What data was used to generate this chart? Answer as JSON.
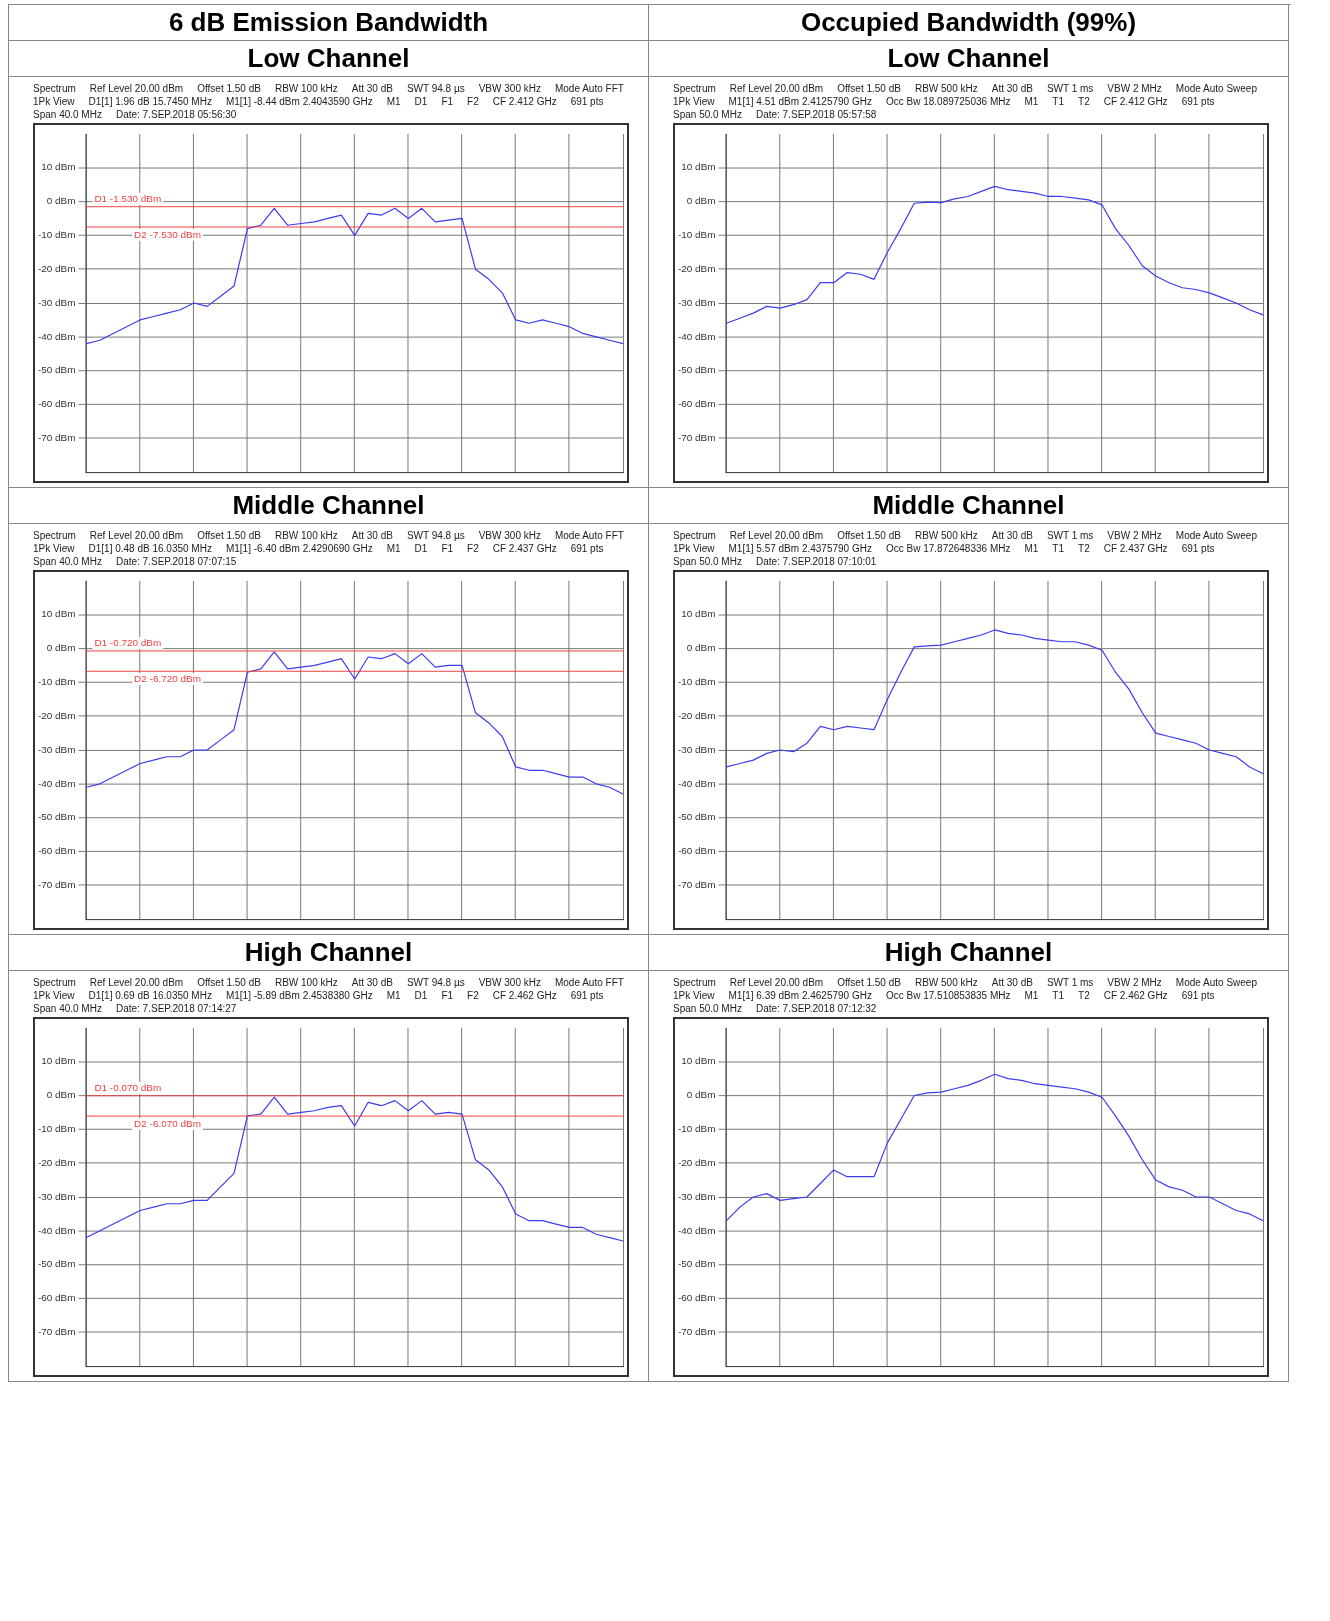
{
  "chart_data": [
    {
      "type": "line",
      "title": "6 dB Emission Bandwidth",
      "subtitle": "Low Channel",
      "grid": true,
      "legend": false,
      "marker": "none",
      "tick_labels": "y",
      "annotations": [
        "Spectrum",
        "Ref Level 20.00 dBm",
        "Offset 1.50 dB",
        "RBW 100 kHz",
        "Att 30 dB",
        "SWT 94.8 µs",
        "VBW 300 kHz",
        "Mode Auto FFT",
        "1Pk View",
        "D1[1] 1.96 dB 15.7450 MHz",
        "M1[1] -8.44 dBm 2.4043590 GHz",
        "M1",
        "D1",
        "F1",
        "F2",
        "CF 2.412 GHz",
        "691 pts",
        "Span 40.0 MHz",
        "Date: 7.SEP.2018 05:56:30"
      ],
      "categories": [
        null,
        null,
        null,
        null,
        null,
        null,
        null,
        null,
        null,
        null,
        null,
        null,
        null,
        null,
        null,
        null,
        null,
        null,
        null,
        null,
        null,
        null,
        null,
        null,
        null,
        null,
        null,
        null,
        null,
        null,
        null,
        null,
        null,
        null,
        null,
        null,
        null,
        null,
        null,
        null,
        null
      ],
      "series": [
        {
          "color": "#3c3cf0",
          "values": [
            -42,
            -41,
            -39,
            -37,
            -35,
            -34,
            -33,
            -32,
            -30,
            -31,
            -28,
            -25,
            -8,
            -7,
            -2,
            -7,
            -6.5,
            -6,
            -5,
            -4,
            -10,
            -3.5,
            -4,
            -2,
            -5,
            -2,
            -6,
            -5.5,
            -5,
            -20,
            -23,
            -27,
            -35,
            -36,
            -35,
            -36,
            -37,
            -39,
            -40,
            -41,
            -42
          ]
        }
      ],
      "ylim": [
        -80,
        20
      ],
      "yticks": [
        {
          "value": 10,
          "label": "10 dBm"
        },
        {
          "value": 0,
          "label": "0 dBm"
        },
        {
          "value": -10,
          "label": "-10 dBm"
        },
        {
          "value": -20,
          "label": "-20 dBm"
        },
        {
          "value": -30,
          "label": "-30 dBm"
        },
        {
          "value": -40,
          "label": "-40 dBm"
        },
        {
          "value": -50,
          "label": "-50 dBm"
        },
        {
          "value": -60,
          "label": "-60 dBm"
        },
        {
          "value": -70,
          "label": "-70 dBm"
        }
      ],
      "ref_lines": [
        {
          "axis": "y",
          "value": -1.53,
          "label": "D1 -1.530 dBm",
          "color": "#f04040"
        },
        {
          "axis": "y",
          "value": -7.53,
          "label": "D2 -7.530 dBm",
          "color": "#f04040"
        }
      ]
    },
    {
      "type": "line",
      "title": "Occupied Bandwidth (99%)",
      "subtitle": "Low Channel",
      "grid": true,
      "legend": false,
      "marker": "none",
      "tick_labels": "y",
      "annotations": [
        "Spectrum",
        "Ref Level 20.00 dBm",
        "Offset 1.50 dB",
        "RBW 500 kHz",
        "Att 30 dB",
        "SWT 1 ms",
        "VBW 2 MHz",
        "Mode Auto Sweep",
        "1Pk View",
        "M1[1] 4.51 dBm 2.4125790 GHz",
        "Occ Bw 18.089725036 MHz",
        "M1",
        "T1",
        "T2",
        "CF 2.412 GHz",
        "691 pts",
        "Span 50.0 MHz",
        "Date: 7.SEP.2018 05:57:58"
      ],
      "categories": [
        null,
        null,
        null,
        null,
        null,
        null,
        null,
        null,
        null,
        null,
        null,
        null,
        null,
        null,
        null,
        null,
        null,
        null,
        null,
        null,
        null,
        null,
        null,
        null,
        null,
        null,
        null,
        null,
        null,
        null,
        null,
        null,
        null,
        null,
        null,
        null,
        null,
        null,
        null,
        null,
        null
      ],
      "series": [
        {
          "color": "#3c3cf0",
          "values": [
            -36,
            -34.5,
            -33,
            -31,
            -31.5,
            -30.5,
            -29,
            -24,
            -24,
            -21,
            -21.5,
            -23,
            -15,
            -8,
            -0.5,
            -0.2,
            -0.3,
            0.8,
            1.5,
            3,
            4.5,
            3.5,
            3,
            2.5,
            1.5,
            1.5,
            1,
            0.5,
            -1,
            -8,
            -13,
            -19,
            -22,
            -24,
            -25.5,
            -26,
            -27,
            -28.5,
            -30,
            -32,
            -33.5
          ]
        }
      ],
      "ylim": [
        -80,
        20
      ],
      "yticks": [
        {
          "value": 10,
          "label": "10 dBm"
        },
        {
          "value": 0,
          "label": "0 dBm"
        },
        {
          "value": -10,
          "label": "-10 dBm"
        },
        {
          "value": -20,
          "label": "-20 dBm"
        },
        {
          "value": -30,
          "label": "-30 dBm"
        },
        {
          "value": -40,
          "label": "-40 dBm"
        },
        {
          "value": -50,
          "label": "-50 dBm"
        },
        {
          "value": -60,
          "label": "-60 dBm"
        },
        {
          "value": -70,
          "label": "-70 dBm"
        }
      ]
    },
    {
      "type": "line",
      "title": "Middle Channel",
      "grid": true,
      "legend": false,
      "marker": "none",
      "tick_labels": "y",
      "annotations": [
        "Spectrum",
        "Ref Level 20.00 dBm",
        "Offset 1.50 dB",
        "RBW 100 kHz",
        "Att 30 dB",
        "SWT 94.8 µs",
        "VBW 300 kHz",
        "Mode Auto FFT",
        "1Pk View",
        "D1[1] 0.48 dB 16.0350 MHz",
        "M1[1] -6.40 dBm 2.4290690 GHz",
        "M1",
        "D1",
        "F1",
        "F2",
        "CF 2.437 GHz",
        "691 pts",
        "Span 40.0 MHz",
        "Date: 7.SEP.2018 07:07:15"
      ],
      "categories": [
        null,
        null,
        null,
        null,
        null,
        null,
        null,
        null,
        null,
        null,
        null,
        null,
        null,
        null,
        null,
        null,
        null,
        null,
        null,
        null,
        null,
        null,
        null,
        null,
        null,
        null,
        null,
        null,
        null,
        null,
        null,
        null,
        null,
        null,
        null,
        null,
        null,
        null,
        null,
        null,
        null
      ],
      "series": [
        {
          "color": "#3c3cf0",
          "values": [
            -41,
            -40,
            -38,
            -36,
            -34,
            -33,
            -32,
            -32,
            -30,
            -30,
            -27,
            -24,
            -7,
            -6,
            -1,
            -6,
            -5.5,
            -5,
            -4,
            -3,
            -9,
            -2.5,
            -3,
            -1.5,
            -4.5,
            -1.5,
            -5.5,
            -5,
            -5,
            -19,
            -22,
            -26,
            -35,
            -36,
            -36,
            -37,
            -38,
            -38,
            -40,
            -41,
            -43
          ]
        }
      ],
      "ylim": [
        -80,
        20
      ],
      "yticks": [
        {
          "value": 10,
          "label": "10 dBm"
        },
        {
          "value": 0,
          "label": "0 dBm"
        },
        {
          "value": -10,
          "label": "-10 dBm"
        },
        {
          "value": -20,
          "label": "-20 dBm"
        },
        {
          "value": -30,
          "label": "-30 dBm"
        },
        {
          "value": -40,
          "label": "-40 dBm"
        },
        {
          "value": -50,
          "label": "-50 dBm"
        },
        {
          "value": -60,
          "label": "-60 dBm"
        },
        {
          "value": -70,
          "label": "-70 dBm"
        }
      ],
      "ref_lines": [
        {
          "axis": "y",
          "value": -0.72,
          "label": "D1 -0.720 dBm",
          "color": "#f04040"
        },
        {
          "axis": "y",
          "value": -6.72,
          "label": "D2 -6.720 dBm",
          "color": "#f04040"
        }
      ]
    },
    {
      "type": "line",
      "title": "Middle Channel",
      "grid": true,
      "legend": false,
      "marker": "none",
      "tick_labels": "y",
      "annotations": [
        "Spectrum",
        "Ref Level 20.00 dBm",
        "Offset 1.50 dB",
        "RBW 500 kHz",
        "Att 30 dB",
        "SWT 1 ms",
        "VBW 2 MHz",
        "Mode Auto Sweep",
        "1Pk View",
        "M1[1] 5.57 dBm 2.4375790 GHz",
        "Occ Bw 17.872648336 MHz",
        "M1",
        "T1",
        "T2",
        "CF 2.437 GHz",
        "691 pts",
        "Span 50.0 MHz",
        "Date: 7.SEP.2018 07:10:01"
      ],
      "categories": [
        null,
        null,
        null,
        null,
        null,
        null,
        null,
        null,
        null,
        null,
        null,
        null,
        null,
        null,
        null,
        null,
        null,
        null,
        null,
        null,
        null,
        null,
        null,
        null,
        null,
        null,
        null,
        null,
        null,
        null,
        null,
        null,
        null,
        null,
        null,
        null,
        null,
        null,
        null,
        null,
        null
      ],
      "series": [
        {
          "color": "#3c3cf0",
          "values": [
            -35,
            -34,
            -33,
            -31,
            -30,
            -30.5,
            -28,
            -23,
            -24,
            -23,
            -23.5,
            -24,
            -15,
            -7,
            0.5,
            0.8,
            1,
            2,
            3,
            4,
            5.5,
            4.5,
            4,
            3,
            2.5,
            2,
            2,
            1,
            -0.5,
            -7,
            -12,
            -19,
            -25,
            -26,
            -27,
            -28,
            -30,
            -31,
            -32,
            -35,
            -37
          ]
        }
      ],
      "ylim": [
        -80,
        20
      ],
      "yticks": [
        {
          "value": 10,
          "label": "10 dBm"
        },
        {
          "value": 0,
          "label": "0 dBm"
        },
        {
          "value": -10,
          "label": "-10 dBm"
        },
        {
          "value": -20,
          "label": "-20 dBm"
        },
        {
          "value": -30,
          "label": "-30 dBm"
        },
        {
          "value": -40,
          "label": "-40 dBm"
        },
        {
          "value": -50,
          "label": "-50 dBm"
        },
        {
          "value": -60,
          "label": "-60 dBm"
        },
        {
          "value": -70,
          "label": "-70 dBm"
        }
      ]
    },
    {
      "type": "line",
      "title": "High Channel",
      "grid": true,
      "legend": false,
      "marker": "none",
      "tick_labels": "y",
      "annotations": [
        "Spectrum",
        "Ref Level 20.00 dBm",
        "Offset 1.50 dB",
        "RBW 100 kHz",
        "Att 30 dB",
        "SWT 94.8 µs",
        "VBW 300 kHz",
        "Mode Auto FFT",
        "1Pk View",
        "D1[1] 0.69 dB 16.0350 MHz",
        "M1[1] -5.89 dBm 2.4538380 GHz",
        "M1",
        "D1",
        "F1",
        "F2",
        "CF 2.462 GHz",
        "691 pts",
        "Span 40.0 MHz",
        "Date: 7.SEP.2018 07:14:27"
      ],
      "categories": [
        null,
        null,
        null,
        null,
        null,
        null,
        null,
        null,
        null,
        null,
        null,
        null,
        null,
        null,
        null,
        null,
        null,
        null,
        null,
        null,
        null,
        null,
        null,
        null,
        null,
        null,
        null,
        null,
        null,
        null,
        null,
        null,
        null,
        null,
        null,
        null,
        null,
        null,
        null,
        null,
        null
      ],
      "series": [
        {
          "color": "#3c3cf0",
          "values": [
            -42,
            -40,
            -38,
            -36,
            -34,
            -33,
            -32,
            -32,
            -31,
            -31,
            -27,
            -23,
            -6,
            -5.5,
            -0.5,
            -5.5,
            -5,
            -4.5,
            -3.5,
            -3,
            -9,
            -2,
            -3,
            -1.5,
            -4.5,
            -1.5,
            -5.5,
            -5,
            -5.5,
            -19,
            -22,
            -27,
            -35,
            -37,
            -37,
            -38,
            -39,
            -39,
            -41,
            -42,
            -43
          ]
        }
      ],
      "ylim": [
        -80,
        20
      ],
      "yticks": [
        {
          "value": 10,
          "label": "10 dBm"
        },
        {
          "value": 0,
          "label": "0 dBm"
        },
        {
          "value": -10,
          "label": "-10 dBm"
        },
        {
          "value": -20,
          "label": "-20 dBm"
        },
        {
          "value": -30,
          "label": "-30 dBm"
        },
        {
          "value": -40,
          "label": "-40 dBm"
        },
        {
          "value": -50,
          "label": "-50 dBm"
        },
        {
          "value": -60,
          "label": "-60 dBm"
        },
        {
          "value": -70,
          "label": "-70 dBm"
        }
      ],
      "ref_lines": [
        {
          "axis": "y",
          "value": -0.07,
          "label": "D1 -0.070 dBm",
          "color": "#f04040"
        },
        {
          "axis": "y",
          "value": -6.07,
          "label": "D2 -6.070 dBm",
          "color": "#f04040"
        }
      ]
    },
    {
      "type": "line",
      "title": "High Channel",
      "grid": true,
      "legend": false,
      "marker": "none",
      "tick_labels": "y",
      "annotations": [
        "Spectrum",
        "Ref Level 20.00 dBm",
        "Offset 1.50 dB",
        "RBW 500 kHz",
        "Att 30 dB",
        "SWT 1 ms",
        "VBW 2 MHz",
        "Mode Auto Sweep",
        "1Pk View",
        "M1[1] 6.39 dBm 2.4625790 GHz",
        "Occ Bw 17.510853835 MHz",
        "M1",
        "T1",
        "T2",
        "CF 2.462 GHz",
        "691 pts",
        "Span 50.0 MHz",
        "Date: 7.SEP.2018 07:12:32"
      ],
      "categories": [
        null,
        null,
        null,
        null,
        null,
        null,
        null,
        null,
        null,
        null,
        null,
        null,
        null,
        null,
        null,
        null,
        null,
        null,
        null,
        null,
        null,
        null,
        null,
        null,
        null,
        null,
        null,
        null,
        null,
        null,
        null,
        null,
        null,
        null,
        null,
        null,
        null,
        null,
        null,
        null,
        null
      ],
      "series": [
        {
          "color": "#3c3cf0",
          "values": [
            -37,
            -33,
            -30,
            -29,
            -31,
            -30.5,
            -30,
            -26,
            -22,
            -24,
            -24,
            -24,
            -14,
            -7,
            0,
            0.8,
            1,
            2,
            3,
            4.5,
            6.3,
            5,
            4.5,
            3.5,
            3,
            2.5,
            2,
            1,
            -0.5,
            -6,
            -12,
            -19,
            -25,
            -27,
            -28,
            -30,
            -30,
            -32,
            -34,
            -35,
            -37
          ]
        }
      ],
      "ylim": [
        -80,
        20
      ],
      "yticks": [
        {
          "value": 10,
          "label": "10 dBm"
        },
        {
          "value": 0,
          "label": "0 dBm"
        },
        {
          "value": -10,
          "label": "-10 dBm"
        },
        {
          "value": -20,
          "label": "-20 dBm"
        },
        {
          "value": -30,
          "label": "-30 dBm"
        },
        {
          "value": -40,
          "label": "-40 dBm"
        },
        {
          "value": -50,
          "label": "-50 dBm"
        },
        {
          "value": -60,
          "label": "-60 dBm"
        },
        {
          "value": -70,
          "label": "-70 dBm"
        }
      ]
    }
  ]
}
